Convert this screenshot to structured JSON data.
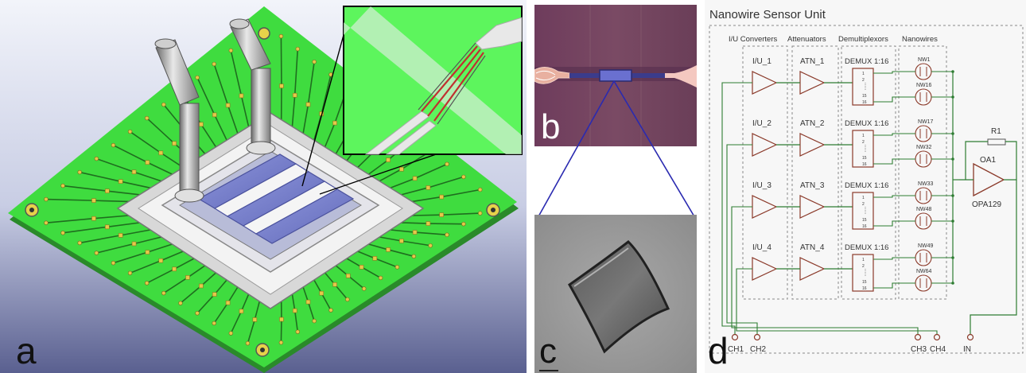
{
  "panels": {
    "a": {
      "label": "a"
    },
    "b": {
      "label": "b"
    },
    "c": {
      "label": "c"
    },
    "d": {
      "label": "d"
    }
  },
  "schematic": {
    "title": "Nanowire Sensor Unit",
    "columns": [
      "I/U Converters",
      "Attenuators",
      "Demultiplexors",
      "Nanowires"
    ],
    "rows": [
      {
        "iu": "I/U_1",
        "atn": "ATN_1",
        "demux": "DEMUX 1:16",
        "nw_top": "NW1",
        "nw_bot": "NW16"
      },
      {
        "iu": "I/U_2",
        "atn": "ATN_2",
        "demux": "DEMUX 1:16",
        "nw_top": "NW17",
        "nw_bot": "NW32"
      },
      {
        "iu": "I/U_3",
        "atn": "ATN_3",
        "demux": "DEMUX 1:16",
        "nw_top": "NW33",
        "nw_bot": "NW48"
      },
      {
        "iu": "I/U_4",
        "atn": "ATN_4",
        "demux": "DEMUX 1:16",
        "nw_top": "NW49",
        "nw_bot": "NW64"
      }
    ],
    "pins": [
      "1",
      "2",
      "15",
      "16"
    ],
    "resistor": "R1",
    "opamp_name": "OA1",
    "opamp_part": "OPA129",
    "channels": [
      "CH1",
      "CH2",
      "CH3",
      "CH4",
      "IN"
    ]
  },
  "colors": {
    "pcb": "#3fdc3f",
    "wire": "#2e7d32",
    "component": "#8b3a2a",
    "dashed": "#888888"
  }
}
